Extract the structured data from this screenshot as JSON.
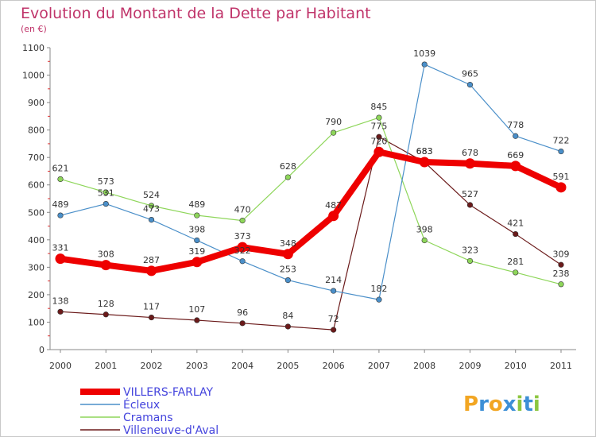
{
  "chart_data": {
    "type": "line",
    "title": "Evolution du Montant de la Dette par Habitant",
    "subtitle": "(en €)",
    "x": [
      "2000",
      "2001",
      "2002",
      "2003",
      "2004",
      "2005",
      "2006",
      "2007",
      "2008",
      "2009",
      "2010",
      "2011"
    ],
    "ylim": [
      0,
      1100
    ],
    "yticks": [
      0,
      100,
      200,
      300,
      400,
      500,
      600,
      700,
      800,
      900,
      1000,
      1100
    ],
    "grid": false,
    "legend_position": "bottom-left",
    "series": [
      {
        "name": "Villeneuve-d'Aval",
        "color": "#6b1a1a",
        "width": 1.2,
        "values": [
          138,
          128,
          117,
          107,
          96,
          84,
          72,
          775,
          683,
          527,
          421,
          309
        ]
      },
      {
        "name": "Cramans",
        "color": "#8ed65a",
        "width": 1.2,
        "values": [
          621,
          573,
          524,
          489,
          470,
          628,
          790,
          845,
          398,
          323,
          281,
          238
        ]
      },
      {
        "name": "Écleux",
        "color": "#4a8fc9",
        "width": 1.2,
        "values": [
          489,
          531,
          473,
          398,
          322,
          253,
          214,
          182,
          1039,
          965,
          778,
          722
        ]
      },
      {
        "name": "VILLERS-FARLAY",
        "color": "#ee0000",
        "width": 8,
        "values": [
          331,
          308,
          287,
          319,
          373,
          348,
          487,
          720,
          683,
          678,
          669,
          591
        ]
      }
    ],
    "legend": [
      "VILLERS-FARLAY",
      "Écleux",
      "Cramans",
      "Villeneuve-d'Aval"
    ]
  },
  "logo": {
    "text": "Proxiti",
    "letters": [
      "P",
      "r",
      "o",
      "x",
      "i",
      "t",
      "i"
    ]
  },
  "colors": {
    "title": "#c0346a",
    "legend_text": "#4444dd"
  }
}
